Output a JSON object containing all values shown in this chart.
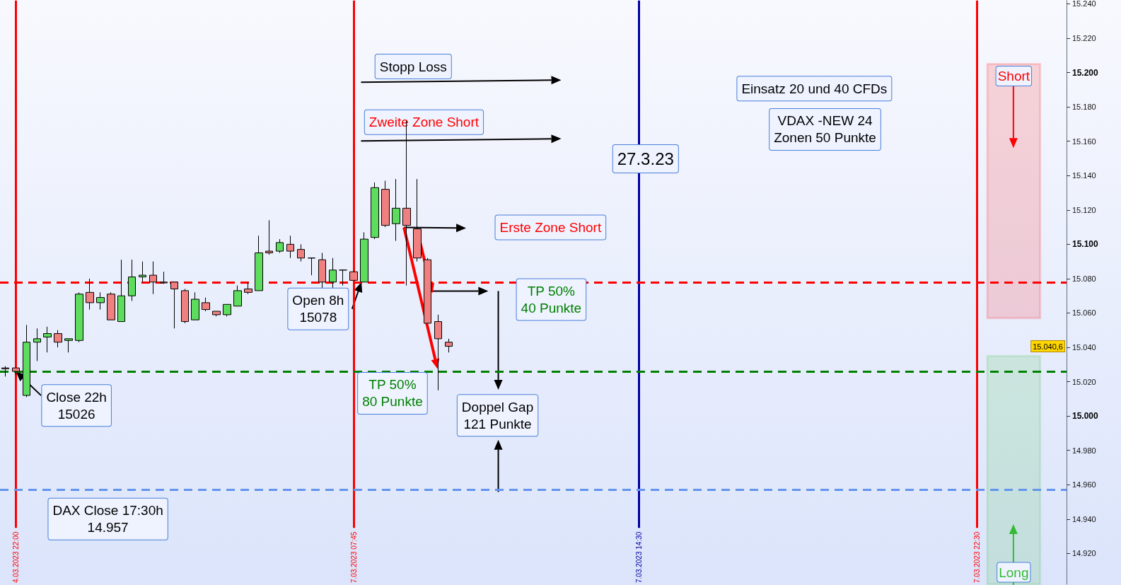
{
  "chart_data": {
    "type": "candlestick",
    "categories": [
      null,
      "4.03.2023 22:00",
      null,
      null,
      null,
      null,
      null,
      null,
      null,
      null,
      null,
      null,
      null,
      null,
      null,
      null,
      null,
      null,
      null,
      null,
      null,
      null,
      null,
      null,
      null,
      null,
      null,
      null,
      null,
      null,
      null,
      null,
      null,
      "7.03.2023 07:45",
      null,
      null,
      null,
      null,
      null,
      null,
      null,
      null,
      null,
      null,
      null,
      null,
      null,
      null,
      null,
      null,
      null,
      null,
      null,
      null,
      null,
      null,
      null,
      null,
      null,
      null,
      "7.03.2023 14:30",
      null,
      null,
      null,
      null,
      null,
      null,
      null,
      null,
      null,
      null,
      null,
      null,
      null,
      null,
      null,
      null,
      null,
      null,
      null,
      null,
      null,
      null,
      null,
      null,
      null,
      null,
      null,
      null,
      null,
      null,
      null,
      "7.03.2023 22:30",
      null,
      null,
      null,
      null,
      null,
      null,
      null,
      null
    ],
    "ohlc": [
      [
        15028,
        15029,
        15023,
        15027.5
      ],
      [
        15028,
        15028,
        15024,
        15026
      ],
      [
        15012,
        15053,
        15011,
        15043
      ],
      [
        15043,
        15051,
        15032,
        15045
      ],
      [
        15046,
        15052,
        15037,
        15048
      ],
      [
        15048,
        15050,
        15040,
        15043
      ],
      [
        15044,
        15045,
        15037,
        15045
      ],
      [
        15044,
        15072,
        15043,
        15071
      ],
      [
        15072,
        15080,
        15062,
        15066
      ],
      [
        15066,
        15072,
        15062,
        15069
      ],
      [
        15071,
        15072,
        15056,
        15056
      ],
      [
        15055,
        15091,
        15055,
        15070
      ],
      [
        15070,
        15091,
        15067,
        15081
      ],
      [
        15081,
        15090,
        15078,
        15082
      ],
      [
        15082,
        15090,
        15071,
        15078
      ],
      [
        15078,
        15084,
        15077,
        15077.5
      ],
      [
        15078,
        15078,
        15051,
        15074
      ],
      [
        15073,
        15074,
        15054,
        15055
      ],
      [
        15056,
        15072,
        15056,
        15068
      ],
      [
        15066,
        15069,
        15061,
        15062
      ],
      [
        15061,
        15061,
        15058,
        15059
      ],
      [
        15059,
        15065,
        15058,
        15065
      ],
      [
        15064,
        15076,
        15064,
        15073
      ],
      [
        15074,
        15078,
        15071,
        15072
      ],
      [
        15073,
        15105,
        15073,
        15095
      ],
      [
        15096,
        15114,
        15094,
        15095
      ],
      [
        15096,
        15103,
        15095,
        15101
      ],
      [
        15100,
        15105,
        15092,
        15096
      ],
      [
        15097,
        15100,
        15090,
        15092
      ],
      [
        15092,
        15092,
        15082,
        15092
      ],
      [
        15091,
        15095,
        15074,
        15078
      ],
      [
        15078,
        15092,
        15074,
        15085
      ],
      [
        15085,
        15085,
        15076,
        15085
      ],
      [
        15084,
        15084,
        15079,
        15079
      ],
      [
        15078,
        15107,
        15078,
        15103
      ],
      [
        15104,
        15136,
        15103,
        15133
      ],
      [
        15132,
        15137,
        15110,
        15111
      ],
      [
        15112,
        15138,
        15102,
        15121
      ],
      [
        15121,
        15172,
        15076,
        15111
      ],
      [
        15109,
        15138,
        15090,
        15092
      ],
      [
        15091,
        15092,
        15054,
        15054
      ],
      [
        15055,
        15059,
        15015,
        15045
      ],
      [
        15043,
        15045,
        15037,
        15040.6
      ],
      null,
      null,
      null,
      null,
      null,
      null,
      null,
      null,
      null,
      null,
      null,
      null,
      null,
      null,
      null,
      null,
      null,
      null,
      null,
      null,
      null,
      null,
      null,
      null,
      null,
      null,
      null,
      null,
      null,
      null,
      null,
      null,
      null,
      null,
      null,
      null,
      null,
      null,
      null,
      null,
      null,
      null,
      null,
      null,
      null,
      null,
      null,
      null,
      null,
      null,
      null,
      null,
      null,
      null,
      null,
      null,
      null,
      null
    ],
    "ylim": [
      14902,
      15242
    ],
    "yticks": [
      {
        "value": 14920,
        "label": "14.920"
      },
      {
        "value": 14940,
        "label": "14.940"
      },
      {
        "value": 14960,
        "label": "14.960"
      },
      {
        "value": 14980,
        "label": "14.980"
      },
      {
        "value": 15000,
        "label": "15.000"
      },
      {
        "value": 15020,
        "label": "15.020"
      },
      {
        "value": 15040,
        "label": "15.040"
      },
      {
        "value": 15060,
        "label": "15.060"
      },
      {
        "value": 15080,
        "label": "15.080"
      },
      {
        "value": 15100,
        "label": "15.100"
      },
      {
        "value": 15120,
        "label": "15.120"
      },
      {
        "value": 15140,
        "label": "15.140"
      },
      {
        "value": 15160,
        "label": "15.160"
      },
      {
        "value": 15180,
        "label": "15.180"
      },
      {
        "value": 15200,
        "label": "15.200"
      },
      {
        "value": 15220,
        "label": "15.220"
      },
      {
        "value": 15240,
        "label": "15.240"
      }
    ],
    "ref_lines": [
      {
        "axis": "x",
        "value": "4.03.2023 22:00",
        "color": "#ff0000"
      },
      {
        "axis": "x",
        "value": "7.03.2023 07:45",
        "color": "#ff0000"
      },
      {
        "axis": "x",
        "value": "7.03.2023 14:30",
        "color": "#0000a0"
      },
      {
        "axis": "x",
        "value": "7.03.2023 22:30",
        "color": "#ff0000"
      },
      {
        "axis": "y",
        "value": 15078,
        "color": "#ff0000",
        "line_style": "dashed"
      },
      {
        "axis": "y",
        "value": 15026,
        "color": "#008000",
        "line_style": "dashed"
      },
      {
        "axis": "y",
        "value": 14957,
        "color": "#6495ed",
        "line_style": "dashed"
      }
    ],
    "bands": [
      {
        "axis": "y",
        "from": 15057,
        "to": 15205,
        "label": "Short",
        "color": "#ff0000"
      },
      {
        "axis": "y",
        "from": 14902,
        "to": 15035,
        "label": "Long",
        "color": "#33bb33"
      }
    ],
    "annotations": [
      "Stopp Loss",
      "Zweite Zone Short",
      "Erste Zone Short",
      "TP 50%\n40 Punkte",
      "TP 50%\n80 Punkte",
      "Doppel Gap\n121 Punkte",
      {
        "text": "Open 8h\n15078",
        "y": 15078
      },
      {
        "text": "Close 22h\n15026",
        "x": "4.03.2023 22:00",
        "y": 15026
      },
      "DAX Close 17:30h\n14.957",
      "27.3.23",
      "Einsatz 20 und 40 CFDs",
      "VDAX -NEW 24\nZonen 50 Punkte",
      "15.040,6"
    ]
  }
}
